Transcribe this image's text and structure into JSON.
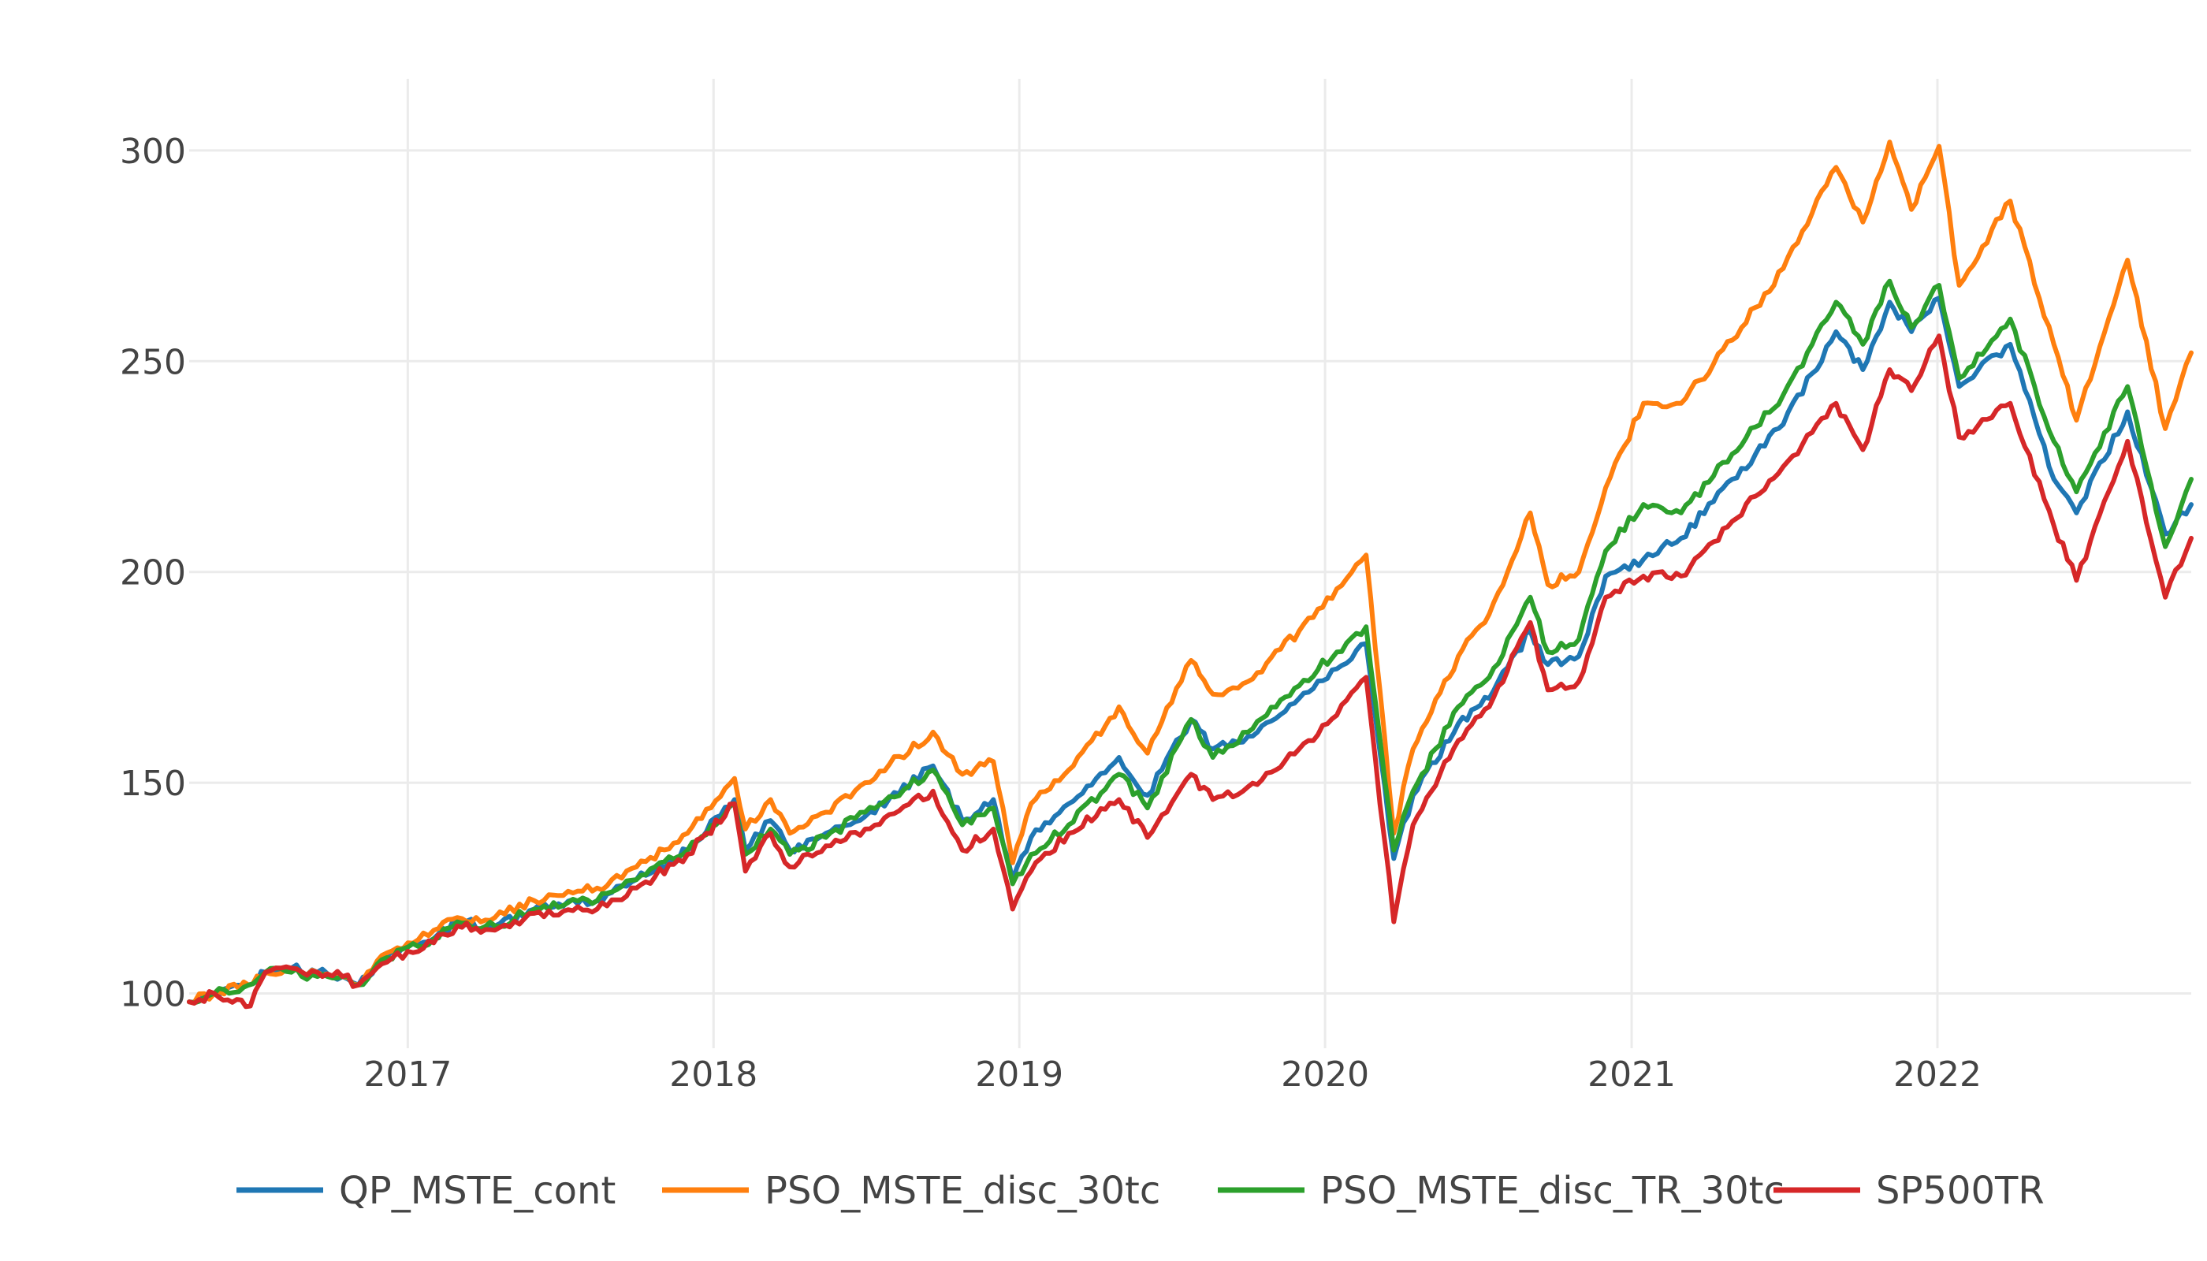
{
  "chart_data": {
    "type": "line",
    "title": "",
    "xlabel": "",
    "ylabel": "",
    "x_range": [
      "2016-04-15",
      "2022-10-31"
    ],
    "ylim": [
      87,
      317
    ],
    "x_ticks": [
      {
        "date": "2017-01-01",
        "label": "2017"
      },
      {
        "date": "2018-01-01",
        "label": "2018"
      },
      {
        "date": "2019-01-01",
        "label": "2019"
      },
      {
        "date": "2020-01-01",
        "label": "2020"
      },
      {
        "date": "2021-01-01",
        "label": "2021"
      },
      {
        "date": "2022-01-01",
        "label": "2022"
      }
    ],
    "y_ticks": [
      100,
      150,
      200,
      250,
      300
    ],
    "grid": true,
    "legend_position": "bottom",
    "series": [
      {
        "name": "QP_MSTE_cont",
        "color": "#1f77b4",
        "points": [
          [
            "2016-04-15",
            98
          ],
          [
            "2016-05-15",
            100
          ],
          [
            "2016-06-25",
            102
          ],
          [
            "2016-07-15",
            105
          ],
          [
            "2016-08-15",
            106
          ],
          [
            "2016-09-15",
            105
          ],
          [
            "2016-10-15",
            104
          ],
          [
            "2016-11-03",
            102
          ],
          [
            "2016-12-01",
            108
          ],
          [
            "2017-01-01",
            111
          ],
          [
            "2017-02-01",
            113
          ],
          [
            "2017-03-01",
            117
          ],
          [
            "2017-04-15",
            116
          ],
          [
            "2017-06-01",
            120
          ],
          [
            "2017-08-15",
            122
          ],
          [
            "2017-10-01",
            127
          ],
          [
            "2017-12-01",
            134
          ],
          [
            "2018-01-26",
            146
          ],
          [
            "2018-02-08",
            134
          ],
          [
            "2018-03-10",
            141
          ],
          [
            "2018-04-02",
            134
          ],
          [
            "2018-05-15",
            138
          ],
          [
            "2018-07-01",
            142
          ],
          [
            "2018-09-20",
            154
          ],
          [
            "2018-10-25",
            141
          ],
          [
            "2018-12-01",
            146
          ],
          [
            "2018-12-24",
            127
          ],
          [
            "2019-01-15",
            137
          ],
          [
            "2019-03-01",
            145
          ],
          [
            "2019-04-30",
            156
          ],
          [
            "2019-06-03",
            147
          ],
          [
            "2019-07-25",
            165
          ],
          [
            "2019-08-20",
            158
          ],
          [
            "2019-10-01",
            161
          ],
          [
            "2019-12-01",
            170
          ],
          [
            "2020-01-15",
            177
          ],
          [
            "2020-02-19",
            183
          ],
          [
            "2020-03-23",
            132
          ],
          [
            "2020-04-15",
            147
          ],
          [
            "2020-06-08",
            164
          ],
          [
            "2020-07-15",
            170
          ],
          [
            "2020-09-02",
            186
          ],
          [
            "2020-09-23",
            178
          ],
          [
            "2020-10-30",
            180
          ],
          [
            "2020-12-01",
            199
          ],
          [
            "2021-01-15",
            203
          ],
          [
            "2021-03-01",
            208
          ],
          [
            "2021-05-01",
            222
          ],
          [
            "2021-07-01",
            235
          ],
          [
            "2021-09-02",
            257
          ],
          [
            "2021-10-04",
            248
          ],
          [
            "2021-11-05",
            264
          ],
          [
            "2021-12-01",
            257
          ],
          [
            "2022-01-03",
            265
          ],
          [
            "2022-01-27",
            244
          ],
          [
            "2022-03-29",
            254
          ],
          [
            "2022-05-20",
            222
          ],
          [
            "2022-06-16",
            214
          ],
          [
            "2022-08-16",
            238
          ],
          [
            "2022-09-30",
            209
          ],
          [
            "2022-10-31",
            216
          ]
        ]
      },
      {
        "name": "PSO_MSTE_disc_30tc",
        "color": "#ff7f0e",
        "points": [
          [
            "2016-04-15",
            98
          ],
          [
            "2016-05-15",
            100
          ],
          [
            "2016-06-25",
            102
          ],
          [
            "2016-07-15",
            105
          ],
          [
            "2016-08-15",
            106
          ],
          [
            "2016-09-15",
            105
          ],
          [
            "2016-10-15",
            104
          ],
          [
            "2016-11-03",
            102
          ],
          [
            "2016-12-01",
            109
          ],
          [
            "2017-01-01",
            112
          ],
          [
            "2017-02-01",
            115
          ],
          [
            "2017-03-01",
            118
          ],
          [
            "2017-04-15",
            118
          ],
          [
            "2017-06-01",
            122
          ],
          [
            "2017-08-15",
            125
          ],
          [
            "2017-10-01",
            130
          ],
          [
            "2017-12-01",
            138
          ],
          [
            "2018-01-26",
            151
          ],
          [
            "2018-02-08",
            139
          ],
          [
            "2018-03-10",
            146
          ],
          [
            "2018-04-02",
            138
          ],
          [
            "2018-05-15",
            143
          ],
          [
            "2018-07-01",
            150
          ],
          [
            "2018-09-20",
            162
          ],
          [
            "2018-10-25",
            152
          ],
          [
            "2018-12-01",
            155
          ],
          [
            "2018-12-24",
            131
          ],
          [
            "2019-01-15",
            145
          ],
          [
            "2019-03-01",
            153
          ],
          [
            "2019-04-30",
            168
          ],
          [
            "2019-06-03",
            157
          ],
          [
            "2019-07-25",
            179
          ],
          [
            "2019-08-20",
            171
          ],
          [
            "2019-10-01",
            174
          ],
          [
            "2019-12-01",
            186
          ],
          [
            "2020-01-15",
            196
          ],
          [
            "2020-02-19",
            204
          ],
          [
            "2020-03-23",
            138
          ],
          [
            "2020-04-15",
            158
          ],
          [
            "2020-06-08",
            180
          ],
          [
            "2020-07-15",
            190
          ],
          [
            "2020-09-02",
            214
          ],
          [
            "2020-09-23",
            197
          ],
          [
            "2020-10-30",
            200
          ],
          [
            "2020-12-01",
            220
          ],
          [
            "2021-01-15",
            240
          ],
          [
            "2021-03-01",
            240
          ],
          [
            "2021-05-01",
            255
          ],
          [
            "2021-07-01",
            272
          ],
          [
            "2021-09-02",
            296
          ],
          [
            "2021-10-04",
            283
          ],
          [
            "2021-11-05",
            302
          ],
          [
            "2021-12-01",
            286
          ],
          [
            "2022-01-03",
            301
          ],
          [
            "2022-01-27",
            268
          ],
          [
            "2022-03-29",
            288
          ],
          [
            "2022-05-20",
            254
          ],
          [
            "2022-06-16",
            236
          ],
          [
            "2022-08-16",
            274
          ],
          [
            "2022-09-30",
            234
          ],
          [
            "2022-10-31",
            252
          ]
        ]
      },
      {
        "name": "PSO_MSTE_disc_TR_30tc",
        "color": "#2ca02c",
        "points": [
          [
            "2016-04-15",
            98
          ],
          [
            "2016-05-15",
            100
          ],
          [
            "2016-06-25",
            102
          ],
          [
            "2016-07-15",
            105
          ],
          [
            "2016-08-15",
            105
          ],
          [
            "2016-09-15",
            104
          ],
          [
            "2016-10-15",
            104
          ],
          [
            "2016-11-03",
            102
          ],
          [
            "2016-12-01",
            108
          ],
          [
            "2017-01-01",
            111
          ],
          [
            "2017-02-01",
            113
          ],
          [
            "2017-03-01",
            117
          ],
          [
            "2017-04-15",
            116
          ],
          [
            "2017-06-01",
            120
          ],
          [
            "2017-08-15",
            122
          ],
          [
            "2017-10-01",
            127
          ],
          [
            "2017-12-01",
            134
          ],
          [
            "2018-01-26",
            145
          ],
          [
            "2018-02-08",
            133
          ],
          [
            "2018-03-10",
            139
          ],
          [
            "2018-04-02",
            133
          ],
          [
            "2018-05-15",
            137
          ],
          [
            "2018-07-01",
            143
          ],
          [
            "2018-09-20",
            153
          ],
          [
            "2018-10-25",
            140
          ],
          [
            "2018-12-01",
            144
          ],
          [
            "2018-12-24",
            126
          ],
          [
            "2019-01-15",
            133
          ],
          [
            "2019-03-01",
            140
          ],
          [
            "2019-04-30",
            152
          ],
          [
            "2019-06-03",
            144
          ],
          [
            "2019-07-25",
            165
          ],
          [
            "2019-08-20",
            156
          ],
          [
            "2019-10-01",
            162
          ],
          [
            "2019-12-01",
            173
          ],
          [
            "2020-01-15",
            181
          ],
          [
            "2020-02-19",
            187
          ],
          [
            "2020-03-23",
            134
          ],
          [
            "2020-04-15",
            148
          ],
          [
            "2020-06-08",
            168
          ],
          [
            "2020-07-15",
            175
          ],
          [
            "2020-09-02",
            194
          ],
          [
            "2020-09-23",
            181
          ],
          [
            "2020-10-30",
            184
          ],
          [
            "2020-12-01",
            205
          ],
          [
            "2021-01-15",
            216
          ],
          [
            "2021-03-01",
            214
          ],
          [
            "2021-05-01",
            228
          ],
          [
            "2021-07-01",
            242
          ],
          [
            "2021-09-02",
            264
          ],
          [
            "2021-10-04",
            254
          ],
          [
            "2021-11-05",
            269
          ],
          [
            "2021-12-01",
            258
          ],
          [
            "2022-01-03",
            268
          ],
          [
            "2022-01-27",
            246
          ],
          [
            "2022-03-29",
            260
          ],
          [
            "2022-05-20",
            231
          ],
          [
            "2022-06-16",
            219
          ],
          [
            "2022-08-16",
            244
          ],
          [
            "2022-09-30",
            206
          ],
          [
            "2022-10-31",
            222
          ]
        ]
      },
      {
        "name": "SP500TR",
        "color": "#d62728",
        "points": [
          [
            "2016-04-15",
            98
          ],
          [
            "2016-05-15",
            100
          ],
          [
            "2016-06-27",
            97
          ],
          [
            "2016-07-15",
            105
          ],
          [
            "2016-08-15",
            106
          ],
          [
            "2016-09-15",
            105
          ],
          [
            "2016-10-15",
            104
          ],
          [
            "2016-11-03",
            102
          ],
          [
            "2016-12-01",
            107
          ],
          [
            "2017-01-01",
            110
          ],
          [
            "2017-02-01",
            112
          ],
          [
            "2017-03-01",
            116
          ],
          [
            "2017-04-15",
            115
          ],
          [
            "2017-06-01",
            119
          ],
          [
            "2017-08-15",
            120
          ],
          [
            "2017-10-01",
            125
          ],
          [
            "2017-12-01",
            133
          ],
          [
            "2018-01-26",
            145
          ],
          [
            "2018-02-08",
            129
          ],
          [
            "2018-03-10",
            138
          ],
          [
            "2018-04-02",
            130
          ],
          [
            "2018-05-15",
            135
          ],
          [
            "2018-07-01",
            139
          ],
          [
            "2018-09-20",
            148
          ],
          [
            "2018-10-25",
            134
          ],
          [
            "2018-12-01",
            139
          ],
          [
            "2018-12-24",
            120
          ],
          [
            "2019-01-15",
            129
          ],
          [
            "2019-03-01",
            138
          ],
          [
            "2019-04-30",
            146
          ],
          [
            "2019-06-03",
            137
          ],
          [
            "2019-07-25",
            152
          ],
          [
            "2019-08-20",
            146
          ],
          [
            "2019-10-01",
            149
          ],
          [
            "2019-12-01",
            158
          ],
          [
            "2020-01-15",
            166
          ],
          [
            "2020-02-19",
            175
          ],
          [
            "2020-03-23",
            117
          ],
          [
            "2020-04-15",
            140
          ],
          [
            "2020-06-08",
            160
          ],
          [
            "2020-07-15",
            168
          ],
          [
            "2020-09-02",
            188
          ],
          [
            "2020-09-23",
            172
          ],
          [
            "2020-10-30",
            174
          ],
          [
            "2020-12-01",
            194
          ],
          [
            "2021-01-15",
            199
          ],
          [
            "2021-03-01",
            199
          ],
          [
            "2021-05-01",
            212
          ],
          [
            "2021-07-01",
            225
          ],
          [
            "2021-09-02",
            240
          ],
          [
            "2021-10-04",
            229
          ],
          [
            "2021-11-05",
            248
          ],
          [
            "2021-12-01",
            243
          ],
          [
            "2022-01-03",
            256
          ],
          [
            "2022-01-27",
            232
          ],
          [
            "2022-03-29",
            240
          ],
          [
            "2022-05-20",
            211
          ],
          [
            "2022-06-16",
            198
          ],
          [
            "2022-08-16",
            231
          ],
          [
            "2022-09-30",
            194
          ],
          [
            "2022-10-31",
            208
          ]
        ]
      }
    ]
  }
}
